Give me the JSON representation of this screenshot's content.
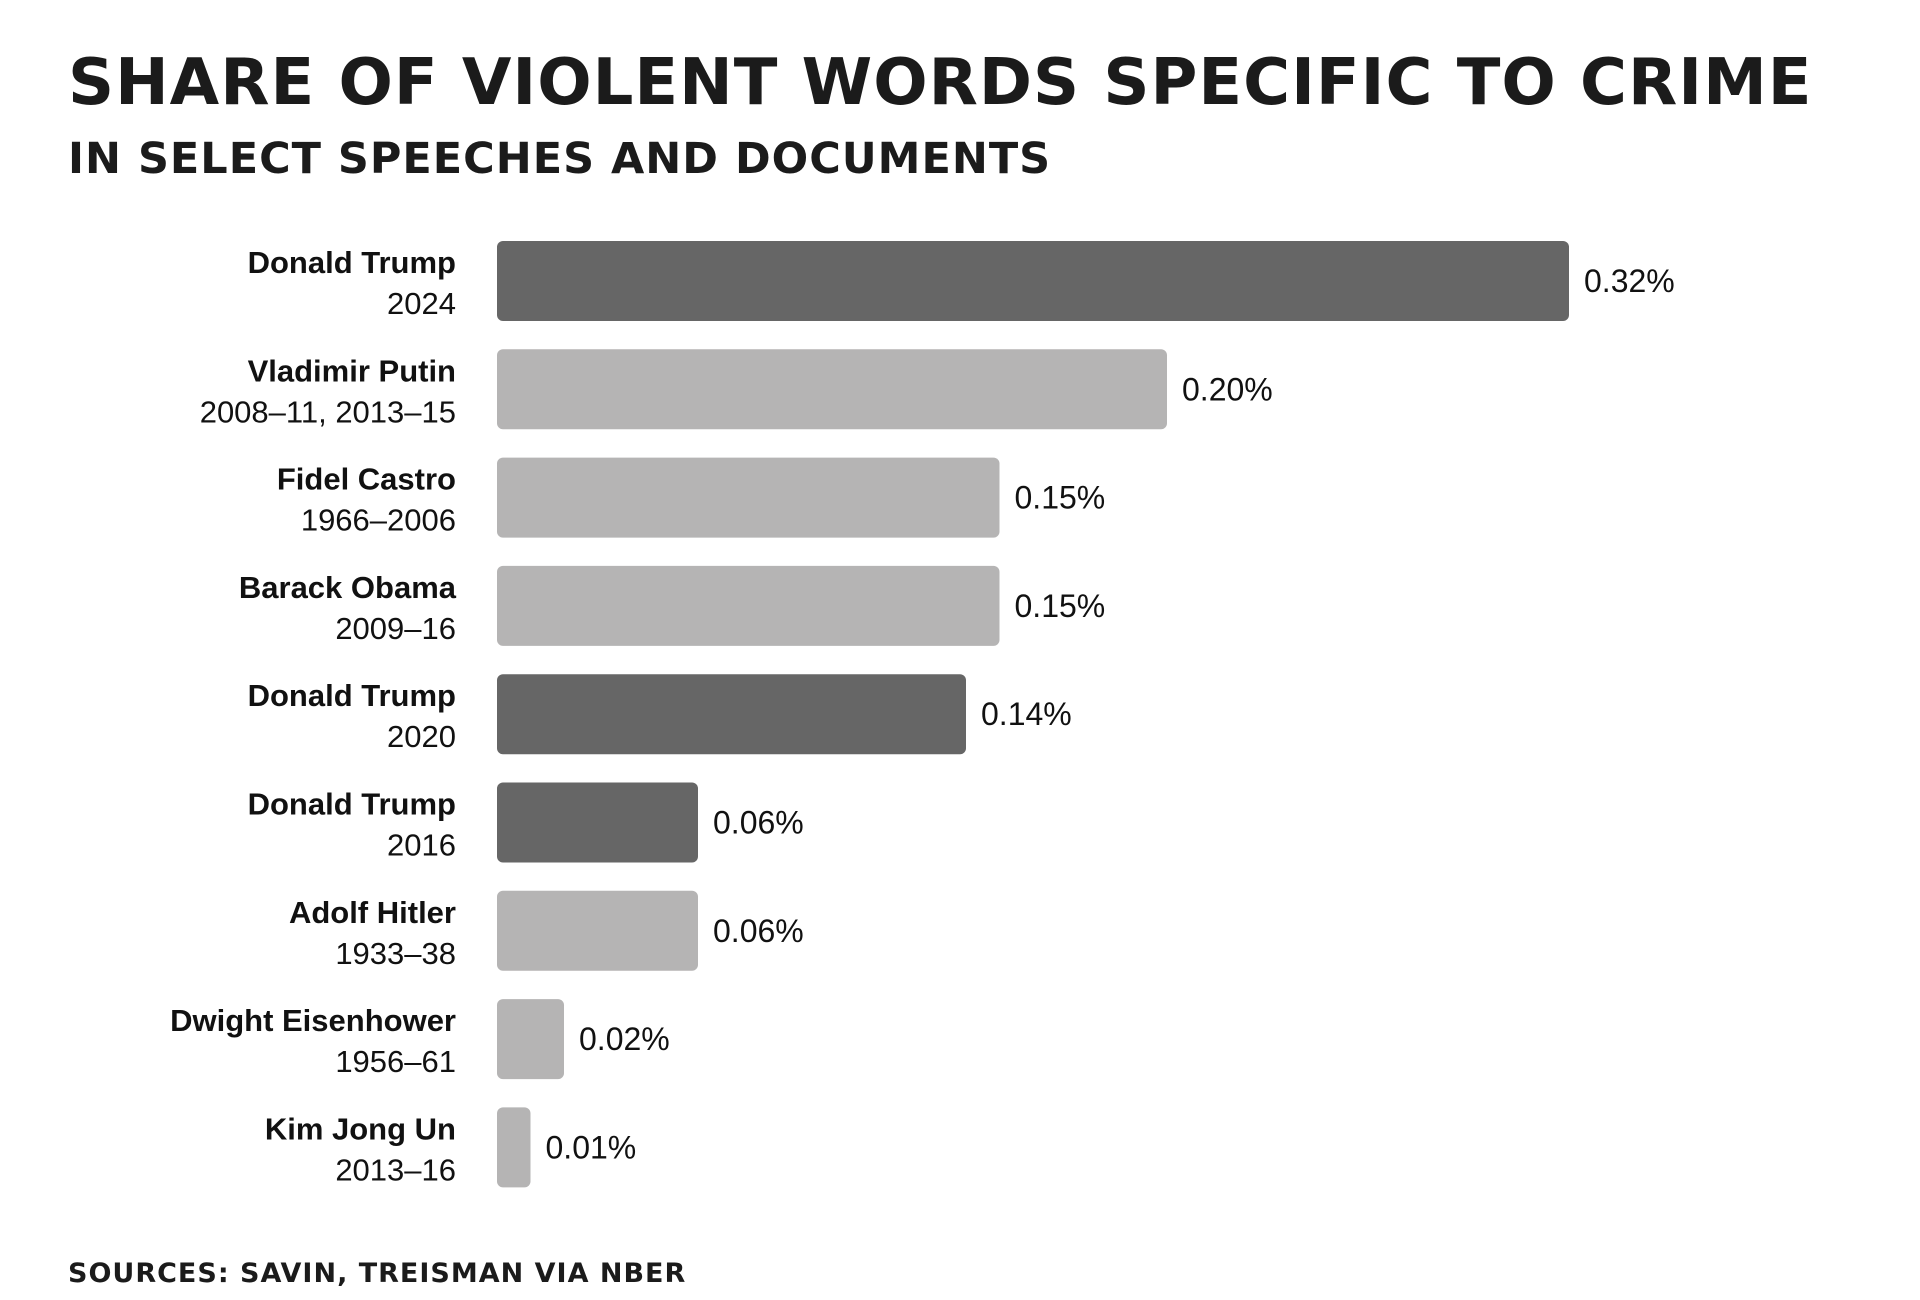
{
  "chart_data": {
    "type": "bar",
    "orientation": "horizontal",
    "title": "SHARE OF VIOLENT WORDS SPECIFIC TO CRIME",
    "subtitle": "IN SELECT SPEECHES AND DOCUMENTS",
    "source": "SOURCES: SAVIN, TREISMAN VIA NBER",
    "xlim": [
      0,
      0.32
    ],
    "unit": "%",
    "colors": {
      "highlight": "#666666",
      "default": "#b5b4b4"
    },
    "bars": [
      {
        "name": "Donald Trump",
        "period": "2024",
        "value": 0.32,
        "label": "0.32%",
        "highlight": true
      },
      {
        "name": "Vladimir Putin",
        "period": "2008–11, 2013–15",
        "value": 0.2,
        "label": "0.20%",
        "highlight": false
      },
      {
        "name": "Fidel Castro",
        "period": "1966–2006",
        "value": 0.15,
        "label": "0.15%",
        "highlight": false
      },
      {
        "name": "Barack Obama",
        "period": "2009–16",
        "value": 0.15,
        "label": "0.15%",
        "highlight": false
      },
      {
        "name": "Donald Trump",
        "period": "2020",
        "value": 0.14,
        "label": "0.14%",
        "highlight": true
      },
      {
        "name": "Donald Trump",
        "period": "2016",
        "value": 0.06,
        "label": "0.06%",
        "highlight": true
      },
      {
        "name": "Adolf Hitler",
        "period": "1933–38",
        "value": 0.06,
        "label": "0.06%",
        "highlight": false
      },
      {
        "name": "Dwight Eisenhower",
        "period": "1956–61",
        "value": 0.02,
        "label": "0.02%",
        "highlight": false
      },
      {
        "name": "Kim Jong Un",
        "period": "2013–16",
        "value": 0.01,
        "label": "0.01%",
        "highlight": false
      }
    ]
  }
}
